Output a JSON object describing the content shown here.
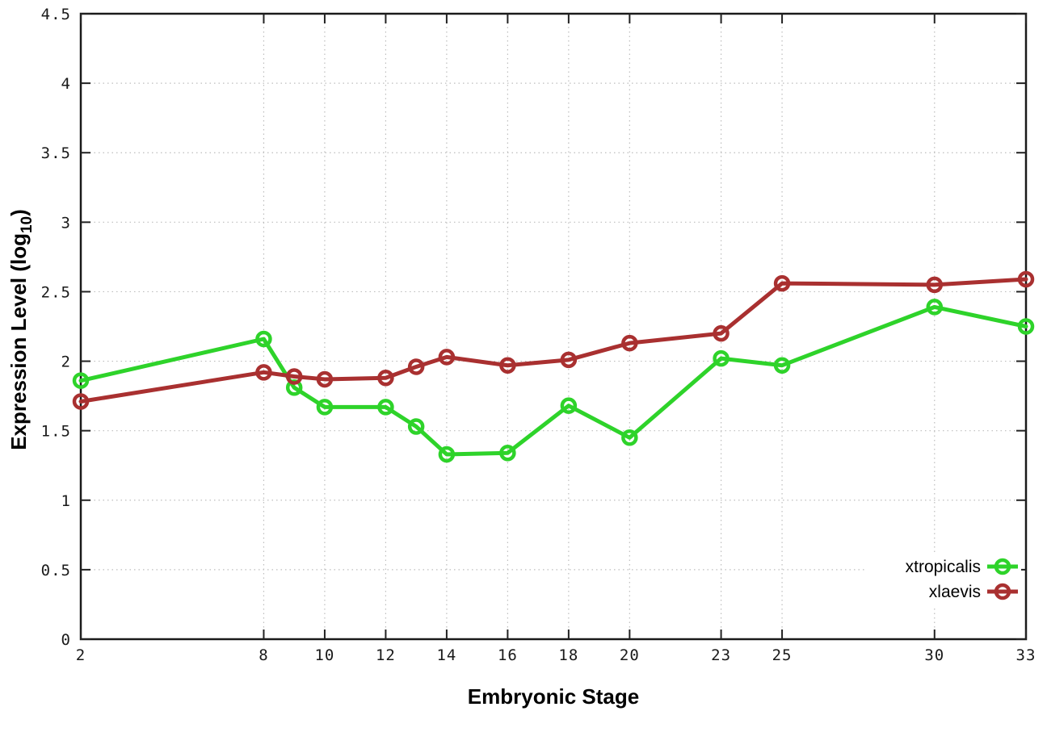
{
  "chart_data": {
    "type": "line",
    "title": "",
    "xlabel": "Embryonic Stage",
    "ylabel": "Expression Level (log10)",
    "ylabel_parts": {
      "main": "Expression Level (log",
      "sub": "10",
      "end": ")"
    },
    "x": [
      2,
      8,
      9,
      10,
      12,
      13,
      14,
      16,
      18,
      20,
      23,
      25,
      30,
      33
    ],
    "xtick_labels": [
      "2",
      "8",
      "10",
      "12",
      "14",
      "16",
      "18",
      "20",
      "23",
      "25",
      "30",
      "33"
    ],
    "xtick_values": [
      2,
      8,
      10,
      12,
      14,
      16,
      18,
      20,
      23,
      25,
      30,
      33
    ],
    "ytick_labels": [
      "0",
      "0.5",
      "1",
      "1.5",
      "2",
      "2.5",
      "3",
      "3.5",
      "4",
      "4.5"
    ],
    "ytick_values": [
      0,
      0.5,
      1,
      1.5,
      2,
      2.5,
      3,
      3.5,
      4,
      4.5
    ],
    "xlim": [
      2,
      33
    ],
    "ylim": [
      0,
      4.5
    ],
    "grid": true,
    "grid_style": "dotted",
    "marker": "open-circle",
    "legend_position": "bottom-right",
    "series": [
      {
        "name": "xtropicalis",
        "color": "#2ed32a",
        "values": [
          1.86,
          2.16,
          1.81,
          1.67,
          1.67,
          1.53,
          1.33,
          1.34,
          1.68,
          1.45,
          2.02,
          1.97,
          2.39,
          2.25
        ]
      },
      {
        "name": "xlaevis",
        "color": "#a93030",
        "values": [
          1.71,
          1.92,
          1.89,
          1.87,
          1.88,
          1.96,
          2.03,
          1.97,
          2.01,
          2.13,
          2.2,
          2.56,
          2.55,
          2.59
        ]
      }
    ]
  },
  "style": {
    "border_color": "#1a1a1a",
    "grid_color": "#bdbdbd",
    "tick_color": "#222222",
    "background": "#ffffff"
  }
}
